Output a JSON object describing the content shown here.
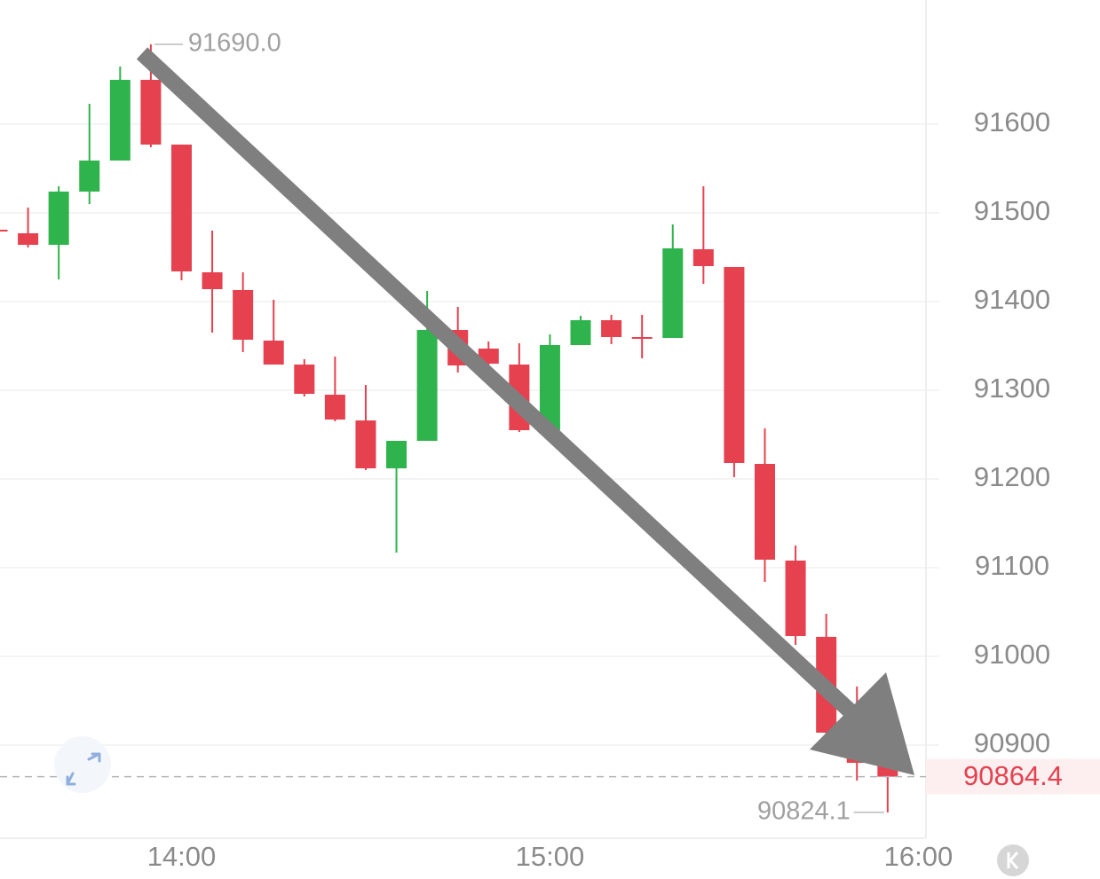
{
  "chart_data": {
    "type": "candlestick",
    "categories": [
      null,
      null,
      null,
      null,
      null,
      null,
      "14:00",
      null,
      null,
      null,
      null,
      null,
      null,
      null,
      null,
      null,
      null,
      null,
      "15:00",
      null,
      null,
      null,
      null,
      null,
      null,
      null,
      null,
      null,
      null,
      null,
      "16:00"
    ],
    "open": [
      91481,
      91477,
      91464,
      91524,
      91559,
      91650,
      91577,
      91433,
      91413,
      91356,
      91329,
      91295,
      91266,
      91212,
      91243,
      91368,
      91347,
      91329,
      91255,
      91351,
      91379,
      91360,
      91359,
      91459,
      91439,
      91217,
      91108,
      91022,
      90913,
      90880,
      null
    ],
    "high": [
      91482,
      91506,
      91530,
      91623,
      91665,
      91690,
      91577,
      91480,
      91433,
      91402,
      91335,
      91338,
      91306,
      91243,
      91412,
      91394,
      91355,
      91353,
      91363,
      91384,
      91385,
      91385,
      91487,
      91530,
      91439,
      91257,
      91125,
      91048,
      90966,
      90885,
      null
    ],
    "low": [
      91478,
      91461,
      91425,
      91510,
      91559,
      91574,
      91424,
      91365,
      91343,
      91329,
      91293,
      91265,
      91210,
      91117,
      91243,
      91320,
      91328,
      91253,
      91255,
      91351,
      91352,
      91336,
      91359,
      91420,
      91202,
      91084,
      91013,
      90910,
      90860,
      90824.1,
      null
    ],
    "close": [
      91479,
      91464,
      91524,
      91559,
      91650,
      91577,
      91434,
      91414,
      91357,
      91329,
      91296,
      91267,
      91212,
      91243,
      91368,
      91328,
      91330,
      91255,
      91351,
      91379,
      91360,
      91359,
      91460,
      91440,
      91218,
      91109,
      91023,
      90914,
      90880,
      90864.4,
      null
    ],
    "up_color": "#2fb34c",
    "down_color": "#e5414f",
    "ylim": [
      90795,
      91740
    ],
    "yticks": [
      90900,
      91000,
      91100,
      91200,
      91300,
      91400,
      91500,
      91600
    ],
    "grid": true,
    "annotations": [
      {
        "value": 91690,
        "label": "91690.0"
      },
      {
        "value": 90824.1,
        "label": "90824.1"
      }
    ],
    "last_price": 90864.4
  }
}
